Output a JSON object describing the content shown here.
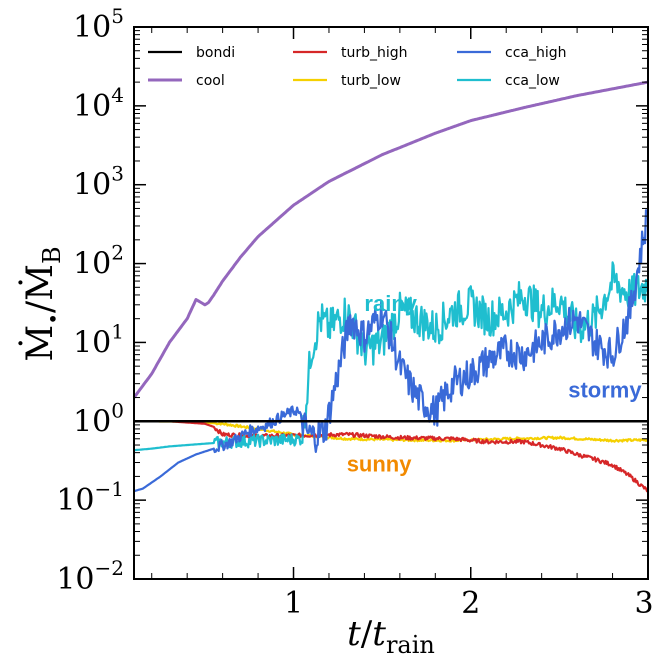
{
  "chart_data": {
    "type": "line",
    "title": "",
    "xlabel": "t / t_rain",
    "ylabel": "Ṁ• / Ṁ_B",
    "xlim": [
      0.1,
      3.0
    ],
    "ylim": [
      0.01,
      100000
    ],
    "yscale": "log",
    "legend_position": "top",
    "xticks": [
      1,
      2,
      3
    ],
    "xtick_labels": [
      "1",
      "2",
      "3"
    ],
    "yticks": [
      0.01,
      0.1,
      1,
      10,
      100,
      1000,
      10000,
      100000
    ],
    "ytick_labels": [
      {
        "base": "10",
        "exp": "−2"
      },
      {
        "base": "10",
        "exp": "−1"
      },
      {
        "base": "10",
        "exp": "0"
      },
      {
        "base": "10",
        "exp": "1"
      },
      {
        "base": "10",
        "exp": "2"
      },
      {
        "base": "10",
        "exp": "3"
      },
      {
        "base": "10",
        "exp": "4"
      },
      {
        "base": "10",
        "exp": "5"
      }
    ],
    "xlabel_parts": {
      "t": "t",
      "slash": "/",
      "t2": "t",
      "sub": "rain"
    },
    "ylabel_parts": {
      "m": "Ṁ",
      "bullet": "•",
      "slash": "/",
      "m2": "Ṁ",
      "sub": "B"
    },
    "series": [
      {
        "name": "bondi",
        "color": "#000000",
        "x": [
          0.1,
          3.0
        ],
        "y": [
          1,
          1
        ]
      },
      {
        "name": "cool",
        "color": "#9467bd",
        "x": [
          0.1,
          0.2,
          0.3,
          0.4,
          0.45,
          0.5,
          0.52,
          0.55,
          0.6,
          0.7,
          0.8,
          1.0,
          1.2,
          1.5,
          1.8,
          2.0,
          2.3,
          2.6,
          3.0
        ],
        "y": [
          2,
          4,
          10,
          20,
          35,
          30,
          32,
          40,
          60,
          120,
          220,
          550,
          1100,
          2400,
          4500,
          6500,
          9500,
          13500,
          20000
        ]
      },
      {
        "name": "turb_high",
        "color": "#d62728",
        "x": [
          0.1,
          0.3,
          0.5,
          0.55,
          0.6,
          0.8,
          1.0,
          1.3,
          1.6,
          1.9,
          2.1,
          2.3,
          2.5,
          2.6,
          2.7,
          2.8,
          2.9,
          3.0
        ],
        "y": [
          1,
          1,
          0.93,
          0.85,
          0.68,
          0.65,
          0.66,
          0.68,
          0.62,
          0.6,
          0.55,
          0.55,
          0.45,
          0.38,
          0.33,
          0.28,
          0.2,
          0.13
        ]
      },
      {
        "name": "turb_low",
        "color": "#f5d000",
        "x": [
          0.1,
          0.4,
          0.6,
          0.8,
          1.0,
          1.3,
          1.6,
          1.9,
          2.2,
          2.5,
          2.8,
          3.0
        ],
        "y": [
          1,
          0.99,
          0.93,
          0.8,
          0.68,
          0.6,
          0.58,
          0.57,
          0.6,
          0.62,
          0.57,
          0.58
        ]
      },
      {
        "name": "cca_high",
        "color": "#3a6ad8",
        "x": [
          0.1,
          0.15,
          0.25,
          0.35,
          0.45,
          0.55,
          0.65,
          0.75,
          0.85,
          0.95,
          1.02,
          1.08,
          1.12,
          1.18,
          1.25,
          1.32,
          1.4,
          1.5,
          1.6,
          1.7,
          1.8,
          1.9,
          2.0,
          2.1,
          2.2,
          2.3,
          2.4,
          2.5,
          2.6,
          2.7,
          2.8,
          2.9,
          3.0
        ],
        "y": [
          0.13,
          0.14,
          0.2,
          0.3,
          0.38,
          0.45,
          0.55,
          0.75,
          0.9,
          1.2,
          1.4,
          0.7,
          0.65,
          0.8,
          4,
          20,
          12,
          25,
          5,
          2,
          1.3,
          3,
          4,
          6,
          8,
          7,
          10,
          15,
          20,
          10,
          7,
          25,
          450
        ]
      },
      {
        "name": "cca_low",
        "color": "#1fbecf",
        "x": [
          0.1,
          0.2,
          0.3,
          0.4,
          0.55,
          0.65,
          0.75,
          0.85,
          0.95,
          1.05,
          1.1,
          1.15,
          1.2,
          1.3,
          1.4,
          1.5,
          1.6,
          1.7,
          1.8,
          1.9,
          2.0,
          2.1,
          2.2,
          2.3,
          2.4,
          2.5,
          2.6,
          2.7,
          2.8,
          2.9,
          3.0
        ],
        "y": [
          0.43,
          0.45,
          0.48,
          0.5,
          0.53,
          0.55,
          0.56,
          0.57,
          0.58,
          0.6,
          8,
          20,
          15,
          25,
          8,
          10,
          25,
          20,
          15,
          25,
          30,
          20,
          25,
          40,
          25,
          35,
          15,
          20,
          60,
          40,
          55
        ]
      }
    ],
    "legend": [
      {
        "label": "bondi",
        "color": "#000000"
      },
      {
        "label": "turb_high",
        "color": "#d62728"
      },
      {
        "label": "cca_high",
        "color": "#3a6ad8"
      },
      {
        "label": "cool",
        "color": "#9467bd"
      },
      {
        "label": "turb_low",
        "color": "#f5d000"
      },
      {
        "label": "cca_low",
        "color": "#1fbecf"
      }
    ],
    "annotations": [
      {
        "text": "rainy",
        "color": "#1fbecf",
        "x": 1.4,
        "y": 25
      },
      {
        "text": "stormy",
        "color": "#3a6ad8",
        "x": 2.55,
        "y": 2.0
      },
      {
        "text": "sunny",
        "color": "#f28a00",
        "x": 1.3,
        "y": 0.23
      }
    ]
  }
}
